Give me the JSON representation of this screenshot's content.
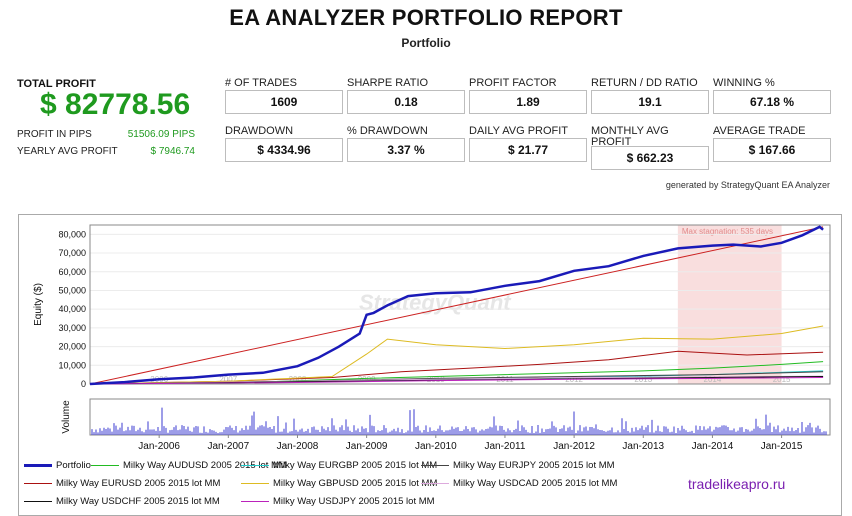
{
  "header": {
    "title": "EA ANALYZER PORTFOLIO REPORT",
    "subtitle": "Portfolio"
  },
  "summary": {
    "total_profit_label": "TOTAL PROFIT",
    "total_profit_value": "$ 82778.56",
    "profit_pips_label": "PROFIT IN PIPS",
    "profit_pips_value": "51506.09 PIPS",
    "yearly_label": "YEARLY AVG PROFIT",
    "yearly_value": "$ 7946.74"
  },
  "metrics": [
    {
      "label": "# OF TRADES",
      "value": "1609"
    },
    {
      "label": "SHARPE RATIO",
      "value": "0.18"
    },
    {
      "label": "PROFIT FACTOR",
      "value": "1.89"
    },
    {
      "label": "RETURN / DD RATIO",
      "value": "19.1"
    },
    {
      "label": "WINNING %",
      "value": "67.18 %"
    },
    {
      "label": "DRAWDOWN",
      "value": "$ 4334.96"
    },
    {
      "label": "% DRAWDOWN",
      "value": "3.37 %"
    },
    {
      "label": "DAILY AVG PROFIT",
      "value": "$ 21.77"
    },
    {
      "label": "MONTHLY AVG PROFIT",
      "value": "$ 662.23"
    },
    {
      "label": "AVERAGE TRADE",
      "value": "$ 167.66"
    }
  ],
  "generated": "generated by StrategyQuant EA Analyzer",
  "watermark": "tradelikeapro.ru",
  "colors": {
    "accent_green": "#1f9a1f",
    "portfolio": "#1a1ab8",
    "trendline": "#cc2222",
    "stagnation_fill": "#f9dede"
  },
  "chart_data": {
    "type": "line",
    "ylabel": "Equity ($)",
    "volume_label": "Volume",
    "ylim": [
      0,
      85000
    ],
    "yticks": [
      0,
      10000,
      20000,
      30000,
      40000,
      50000,
      60000,
      70000,
      80000
    ],
    "ytick_labels": [
      "0",
      "10,000",
      "20,000",
      "30,000",
      "40,000",
      "50,000",
      "60,000",
      "70,000",
      "80,000"
    ],
    "x_range": [
      2005.0,
      2015.7
    ],
    "top_years": [
      "2006",
      "2007",
      "2008",
      "2009",
      "2010",
      "2011",
      "2012",
      "2013",
      "2014",
      "2015"
    ],
    "bottom_ticks": [
      "Jan-2006",
      "Jan-2007",
      "Jan-2008",
      "Jan-2009",
      "Jan-2010",
      "Jan-2011",
      "Jan-2012",
      "Jan-2013",
      "Jan-2014",
      "Jan-2015"
    ],
    "stagnation": {
      "label": "Max stagnation: 535 days",
      "start": 2013.5,
      "end": 2015.0
    },
    "watermark_text": "StrategyQuant",
    "series": [
      {
        "name": "Portfolio",
        "color": "#1a1ab8",
        "width": 2.5,
        "x": [
          2005.0,
          2005.5,
          2006.0,
          2006.5,
          2007.0,
          2007.5,
          2008.0,
          2008.3,
          2008.6,
          2008.9,
          2009.0,
          2009.1,
          2009.3,
          2009.6,
          2010.0,
          2010.5,
          2011.0,
          2011.5,
          2012.0,
          2012.5,
          2013.0,
          2013.5,
          2014.0,
          2014.3,
          2014.7,
          2015.0,
          2015.3,
          2015.55,
          2015.6
        ],
        "y": [
          0,
          1000,
          2500,
          3500,
          5000,
          6000,
          9500,
          14000,
          20000,
          27000,
          37000,
          38000,
          42000,
          47000,
          48500,
          49000,
          52500,
          55000,
          60500,
          63000,
          68500,
          72500,
          74000,
          74500,
          73500,
          75500,
          79500,
          84000,
          82500
        ]
      },
      {
        "name": "Milky Way AUDUSD 2005 2015 lot MM",
        "color": "#22bb22",
        "width": 1,
        "x": [
          2005.0,
          2007.0,
          2009.0,
          2011.0,
          2013.0,
          2014.0,
          2015.0,
          2015.6
        ],
        "y": [
          0,
          500,
          3000,
          5000,
          7000,
          8500,
          10500,
          12000
        ]
      },
      {
        "name": "Milky Way EURGBP 2005 2015 lot MM",
        "color": "#22cccc",
        "width": 1,
        "x": [
          2005.0,
          2008.0,
          2010.0,
          2012.0,
          2014.0,
          2015.6
        ],
        "y": [
          0,
          1000,
          2500,
          3500,
          5000,
          7000
        ]
      },
      {
        "name": "Milky Way EURJPY 2005 2015 lot MM",
        "color": "#444444",
        "width": 1,
        "x": [
          2005.0,
          2008.0,
          2010.0,
          2012.0,
          2014.0,
          2015.6
        ],
        "y": [
          0,
          1500,
          3000,
          4000,
          5000,
          6500
        ]
      },
      {
        "name": "Milky Way EURUSD 2005 2015 lot MM",
        "color": "#aa1111",
        "width": 1,
        "x": [
          2005.0,
          2007.0,
          2008.5,
          2009.5,
          2010.5,
          2011.5,
          2012.5,
          2013.5,
          2014.5,
          2015.6
        ],
        "y": [
          0,
          1500,
          3500,
          6500,
          8500,
          10500,
          13000,
          17500,
          15500,
          17000
        ]
      },
      {
        "name": "Milky Way GBPUSD 2005 2015 lot MM",
        "color": "#ddbb22",
        "width": 1,
        "x": [
          2005.0,
          2007.0,
          2008.5,
          2009.0,
          2009.3,
          2010.0,
          2011.0,
          2012.0,
          2013.0,
          2014.0,
          2015.0,
          2015.6
        ],
        "y": [
          0,
          1500,
          4000,
          16000,
          24000,
          21000,
          19000,
          21000,
          24500,
          24000,
          27000,
          31000
        ]
      },
      {
        "name": "Milky Way USDCAD 2005 2015 lot MM",
        "color": "#ddaadd",
        "width": 1,
        "x": [
          2005.0,
          2008.0,
          2010.0,
          2012.0,
          2014.0,
          2015.6
        ],
        "y": [
          0,
          1500,
          2500,
          3500,
          3800,
          4200
        ]
      },
      {
        "name": "Milky Way USDCHF 2005 2015 lot MM",
        "color": "#111111",
        "width": 1,
        "x": [
          2005.0,
          2008.0,
          2010.0,
          2012.0,
          2014.0,
          2015.6
        ],
        "y": [
          0,
          1200,
          2000,
          2800,
          3500,
          4000
        ]
      },
      {
        "name": "Milky Way USDJPY 2005 2015 lot MM",
        "color": "#bb22bb",
        "width": 1,
        "x": [
          2005.0,
          2008.0,
          2010.0,
          2012.0,
          2014.0,
          2015.6
        ],
        "y": [
          0,
          800,
          1800,
          2500,
          3000,
          3500
        ]
      }
    ],
    "trendline": {
      "color": "#cc2222",
      "x": [
        2005.0,
        2015.6
      ],
      "y": [
        0,
        84000
      ]
    }
  }
}
